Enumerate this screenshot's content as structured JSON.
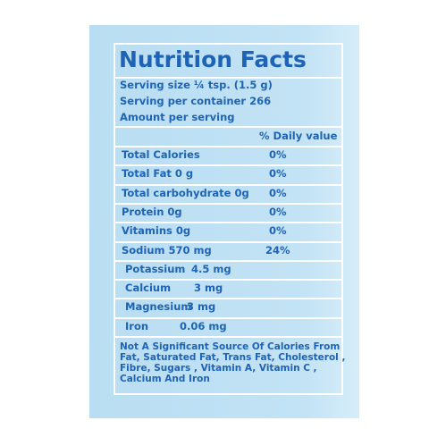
{
  "title": "Nutrition Facts",
  "serving": [
    "Serving size ¼ tsp. (1.5 g)",
    "Serving per container 266",
    "Amount per serving"
  ],
  "daily_header": "% Daily value",
  "daily_rows": [
    [
      "Total Calories",
      "0%"
    ],
    [
      "Total Fat 0 g",
      "0%"
    ],
    [
      "Total carbohydrate 0g",
      "0%"
    ],
    [
      "Protein 0g",
      "0%"
    ],
    [
      "Vitamins 0g",
      "0%"
    ],
    [
      "Sodium 570 mg",
      "24%"
    ]
  ],
  "mineral_rows": [
    [
      "Potassium",
      "4.5 mg"
    ],
    [
      "Calcium",
      "3 mg"
    ],
    [
      "Magnesium",
      "3 mg"
    ],
    [
      "Iron",
      "0.06 mg"
    ]
  ],
  "footnote": [
    "Not A Significant Source Of Calories From",
    "Fat, Saturated Fat, Trans Fat, Cholesterol ,",
    "Fibre, Sugars ,  Vitamin A, Vitamin C ,",
    "Calcium  And Iron"
  ]
}
